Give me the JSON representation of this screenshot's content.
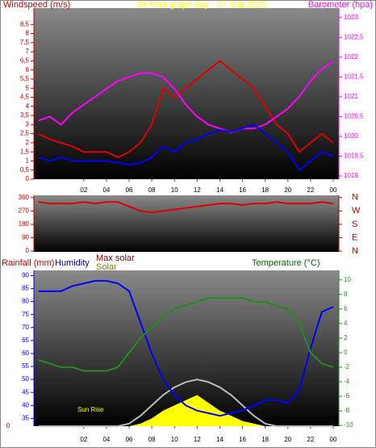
{
  "chart_data": [
    {
      "type": "line",
      "title": "24 hour graph day - 07 Mar 2025",
      "ylabel": "Windspeed (m/s)",
      "y2label": "Barometer (hpa)",
      "x": [
        -2,
        -1,
        0,
        1,
        2,
        3,
        4,
        5,
        6,
        7,
        8,
        9,
        10,
        11,
        12,
        13,
        14,
        15,
        16,
        17,
        18,
        19,
        20,
        21,
        22,
        23,
        24
      ],
      "xlim": [
        -2.4,
        24.5
      ],
      "xticks": [
        {
          "value": 2,
          "label": "02"
        },
        {
          "value": 4,
          "label": "04"
        },
        {
          "value": 6,
          "label": "06"
        },
        {
          "value": 8,
          "label": "08"
        },
        10,
        12,
        14,
        16,
        18,
        20,
        22,
        {
          "value": 24,
          "label": "00"
        }
      ],
      "ylim": [
        0,
        9.4
      ],
      "yticks": [
        0,
        {
          "value": 0.5,
          "label": "0,5"
        },
        1,
        {
          "value": 1.5,
          "label": "1,5"
        },
        2,
        {
          "value": 2.5,
          "label": "2,5"
        },
        3,
        {
          "value": 3.5,
          "label": "3,5"
        },
        4,
        {
          "value": 4.5,
          "label": "4,5"
        },
        5,
        {
          "value": 5.5,
          "label": "5,5"
        },
        6,
        {
          "value": 6.5,
          "label": "6,5"
        },
        7,
        {
          "value": 7.5,
          "label": "7,5"
        },
        8,
        {
          "value": 8.5,
          "label": "8,5"
        }
      ],
      "y2lim": [
        1018.92,
        1023.24
      ],
      "y2ticks": [
        1019,
        {
          "value": 1019.5,
          "label": "1019,5"
        },
        1020,
        {
          "value": 1020.5,
          "label": "1020,5"
        },
        1021,
        {
          "value": 1021.5,
          "label": "1021,5"
        },
        1022,
        {
          "value": 1022.5,
          "label": "1022,5"
        },
        1023
      ],
      "series": [
        {
          "color": "#e00000",
          "values": [
            2.5,
            2.2,
            2.0,
            1.8,
            1.5,
            1.5,
            1.5,
            1.2,
            1.5,
            2.0,
            3.0,
            5.0,
            4.5,
            5.0,
            5.5,
            6.0,
            6.5,
            6.0,
            5.5,
            5.0,
            4.0,
            3.0,
            2.5,
            1.5,
            2.0,
            2.5,
            2.0
          ]
        },
        {
          "color": "#ff00ff",
          "axis": "y2",
          "values": [
            1020.4,
            1020.5,
            1020.3,
            1020.6,
            1020.8,
            1021.0,
            1021.2,
            1021.4,
            1021.5,
            1021.6,
            1021.6,
            1021.5,
            1021.2,
            1020.8,
            1020.5,
            1020.3,
            1020.2,
            1020.1,
            1020.2,
            1020.2,
            1020.3,
            1020.5,
            1020.7,
            1021.0,
            1021.4,
            1021.7,
            1021.9
          ]
        },
        {
          "color": "#0000ff",
          "values": [
            1.2,
            1.0,
            1.2,
            1.0,
            1.0,
            1.0,
            1.0,
            0.9,
            0.8,
            0.9,
            1.2,
            1.8,
            1.5,
            2.0,
            2.2,
            2.5,
            2.7,
            2.6,
            2.8,
            3.0,
            2.5,
            2.0,
            1.5,
            0.5,
            1.0,
            1.5,
            1.3
          ]
        }
      ]
    },
    {
      "type": "line",
      "x": [
        -2,
        -1,
        0,
        1,
        2,
        3,
        4,
        5,
        6,
        7,
        8,
        9,
        10,
        11,
        12,
        13,
        14,
        15,
        16,
        17,
        18,
        19,
        20,
        21,
        22,
        23,
        24
      ],
      "xlim": [
        -2.4,
        24.5
      ],
      "ylim": [
        -5,
        375
      ],
      "yticks": [
        0,
        90,
        180,
        270,
        360
      ],
      "y2ticks": [
        {
          "value": 360,
          "label": "N"
        },
        {
          "value": 270,
          "label": "W"
        },
        {
          "value": 180,
          "label": "S"
        },
        {
          "value": 90,
          "label": "E"
        },
        {
          "value": 0,
          "label": "N"
        }
      ],
      "series": [
        {
          "color": "#e00000",
          "values": [
            330,
            320,
            320,
            320,
            330,
            320,
            330,
            330,
            300,
            270,
            260,
            270,
            280,
            290,
            300,
            310,
            320,
            320,
            310,
            320,
            320,
            330,
            320,
            320,
            320,
            330,
            320
          ]
        }
      ]
    },
    {
      "type": "line",
      "rain_label": "Rainfall (mm)",
      "rain_ticks": [
        0
      ],
      "annotation": "Sun Rise",
      "x": [
        -2,
        -1,
        0,
        1,
        2,
        3,
        4,
        5,
        6,
        7,
        8,
        9,
        10,
        11,
        12,
        13,
        14,
        15,
        16,
        17,
        18,
        19,
        20,
        21,
        22,
        23,
        24
      ],
      "xlim": [
        -2.4,
        24.5
      ],
      "xticks": [
        {
          "value": 2,
          "label": "02"
        },
        {
          "value": 4,
          "label": "04"
        },
        {
          "value": 6,
          "label": "06"
        },
        {
          "value": 8,
          "label": "08"
        },
        10,
        12,
        14,
        16,
        18,
        20,
        22,
        {
          "value": 24,
          "label": "00"
        }
      ],
      "ylim": [
        32,
        92
      ],
      "yticks": [
        35,
        40,
        45,
        50,
        55,
        60,
        65,
        70,
        75,
        80,
        85,
        90
      ],
      "y2lim": [
        -10.1,
        11.3
      ],
      "y2ticks": [
        -10,
        -8,
        -6,
        -4,
        -2,
        0,
        2,
        4,
        6,
        8,
        10
      ],
      "series": [
        {
          "name": "Solar",
          "color": "#ffff00",
          "kind": "area",
          "values": [
            32,
            32,
            32,
            32,
            32,
            32,
            32,
            32,
            32,
            33,
            35,
            38,
            40,
            42,
            44,
            41,
            38,
            36,
            34,
            33,
            32,
            32,
            32,
            32,
            32,
            32,
            32
          ]
        },
        {
          "name": "Max solar",
          "color": "#bbbbbb",
          "values": [
            32,
            32,
            32,
            32,
            32,
            32,
            32,
            32,
            33,
            36,
            40,
            44,
            47,
            49,
            50,
            49,
            47,
            44,
            40,
            36,
            33,
            32,
            32,
            32,
            32,
            32,
            32
          ]
        },
        {
          "name": "Humidity",
          "color": "#0000ff",
          "values": [
            84,
            84,
            84,
            86,
            87,
            88,
            88,
            87,
            84,
            72,
            60,
            50,
            44,
            40,
            38,
            37,
            36,
            37,
            38,
            40,
            42,
            42,
            41,
            46,
            62,
            76,
            78
          ]
        },
        {
          "name": "Temperature (°C)",
          "color": "#228b22",
          "axis": "y2",
          "values": [
            -1,
            -1.5,
            -2,
            -2,
            -2.5,
            -2.5,
            -2.5,
            -2,
            0,
            2,
            3.5,
            5,
            6,
            6.5,
            7,
            7.5,
            7.5,
            7.5,
            7.5,
            7,
            7,
            6.5,
            6,
            4,
            0,
            -1.5,
            -2
          ]
        }
      ]
    }
  ]
}
